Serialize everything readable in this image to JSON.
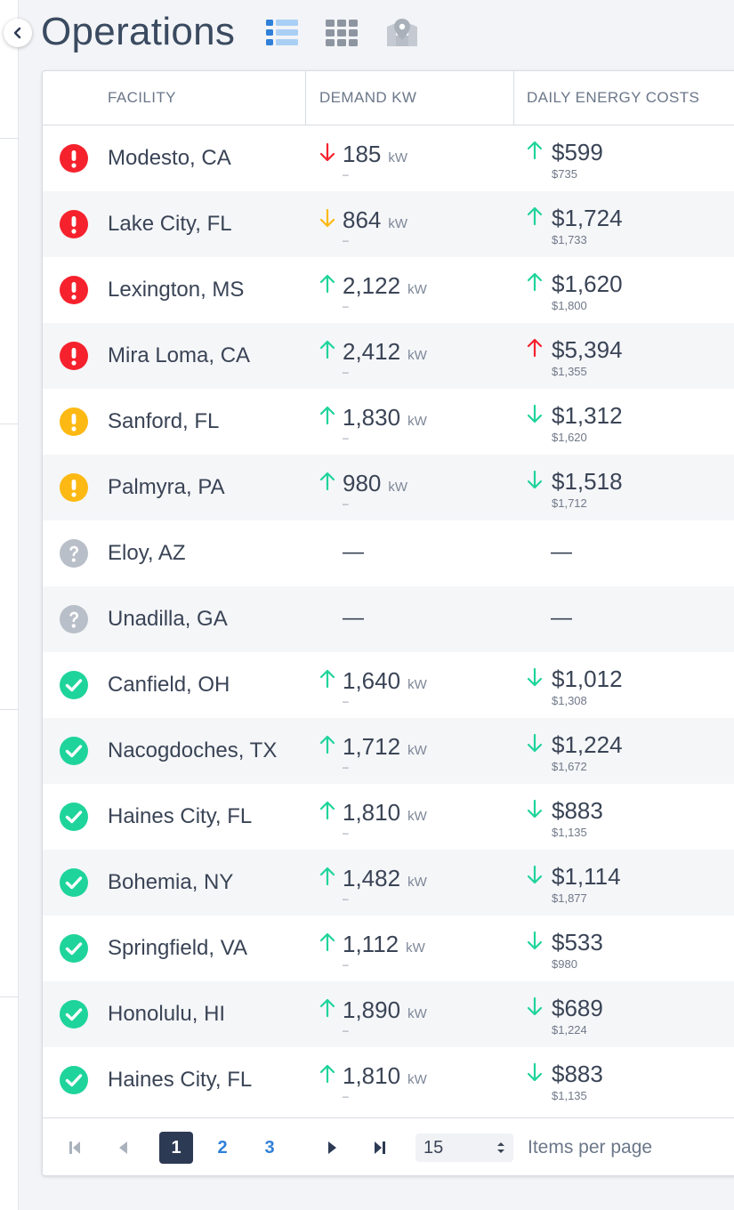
{
  "header": {
    "title": "Operations",
    "views": [
      {
        "name": "list-view",
        "icon": "list-icon",
        "active": true
      },
      {
        "name": "grid-view",
        "icon": "grid-icon",
        "active": false
      },
      {
        "name": "map-view",
        "icon": "map-pin-icon",
        "active": false
      }
    ]
  },
  "columns": {
    "facility": "FACILITY",
    "demand": "DEMAND KW",
    "costs": "DAILY ENERGY COSTS"
  },
  "colors": {
    "red": "#f5222d",
    "amber": "#fdb913",
    "green": "#1fd49a",
    "gray": "#b9bfc8",
    "accent": "#2f80d8"
  },
  "rows": [
    {
      "status": "alert",
      "facility": "Modesto, CA",
      "kw": "185",
      "kw_unit": "kW",
      "kw_sub": "–",
      "kw_trend": "down",
      "kw_color": "red",
      "cost": "$599",
      "cost_sub": "$735",
      "cost_trend": "up",
      "cost_color": "green"
    },
    {
      "status": "alert",
      "facility": "Lake City, FL",
      "kw": "864",
      "kw_unit": "kW",
      "kw_sub": "–",
      "kw_trend": "down",
      "kw_color": "amber",
      "cost": "$1,724",
      "cost_sub": "$1,733",
      "cost_trend": "up",
      "cost_color": "green"
    },
    {
      "status": "alert",
      "facility": "Lexington, MS",
      "kw": "2,122",
      "kw_unit": "kW",
      "kw_sub": "–",
      "kw_trend": "up",
      "kw_color": "green",
      "cost": "$1,620",
      "cost_sub": "$1,800",
      "cost_trend": "up",
      "cost_color": "green"
    },
    {
      "status": "alert",
      "facility": "Mira Loma, CA",
      "kw": "2,412",
      "kw_unit": "kW",
      "kw_sub": "–",
      "kw_trend": "up",
      "kw_color": "green",
      "cost": "$5,394",
      "cost_sub": "$1,355",
      "cost_trend": "up",
      "cost_color": "red"
    },
    {
      "status": "warning",
      "facility": "Sanford, FL",
      "kw": "1,830",
      "kw_unit": "kW",
      "kw_sub": "–",
      "kw_trend": "up",
      "kw_color": "green",
      "cost": "$1,312",
      "cost_sub": "$1,620",
      "cost_trend": "down",
      "cost_color": "green"
    },
    {
      "status": "warning",
      "facility": "Palmyra, PA",
      "kw": "980",
      "kw_unit": "kW",
      "kw_sub": "–",
      "kw_trend": "up",
      "kw_color": "green",
      "cost": "$1,518",
      "cost_sub": "$1,712",
      "cost_trend": "down",
      "cost_color": "green"
    },
    {
      "status": "unknown",
      "facility": "Eloy, AZ",
      "kw": "—",
      "cost": "—"
    },
    {
      "status": "unknown",
      "facility": "Unadilla, GA",
      "kw": "—",
      "cost": "—"
    },
    {
      "status": "ok",
      "facility": "Canfield, OH",
      "kw": "1,640",
      "kw_unit": "kW",
      "kw_sub": "–",
      "kw_trend": "up",
      "kw_color": "green",
      "cost": "$1,012",
      "cost_sub": "$1,308",
      "cost_trend": "down",
      "cost_color": "green"
    },
    {
      "status": "ok",
      "facility": "Nacogdoches, TX",
      "kw": "1,712",
      "kw_unit": "kW",
      "kw_sub": "–",
      "kw_trend": "up",
      "kw_color": "green",
      "cost": "$1,224",
      "cost_sub": "$1,672",
      "cost_trend": "down",
      "cost_color": "green"
    },
    {
      "status": "ok",
      "facility": "Haines City, FL",
      "kw": "1,810",
      "kw_unit": "kW",
      "kw_sub": "–",
      "kw_trend": "up",
      "kw_color": "green",
      "cost": "$883",
      "cost_sub": "$1,135",
      "cost_trend": "down",
      "cost_color": "green"
    },
    {
      "status": "ok",
      "facility": "Bohemia, NY",
      "kw": "1,482",
      "kw_unit": "kW",
      "kw_sub": "–",
      "kw_trend": "up",
      "kw_color": "green",
      "cost": "$1,114",
      "cost_sub": "$1,877",
      "cost_trend": "down",
      "cost_color": "green"
    },
    {
      "status": "ok",
      "facility": "Springfield, VA",
      "kw": "1,112",
      "kw_unit": "kW",
      "kw_sub": "–",
      "kw_trend": "up",
      "kw_color": "green",
      "cost": "$533",
      "cost_sub": "$980",
      "cost_trend": "down",
      "cost_color": "green"
    },
    {
      "status": "ok",
      "facility": "Honolulu, HI",
      "kw": "1,890",
      "kw_unit": "kW",
      "kw_sub": "–",
      "kw_trend": "up",
      "kw_color": "green",
      "cost": "$689",
      "cost_sub": "$1,224",
      "cost_trend": "down",
      "cost_color": "green"
    },
    {
      "status": "ok",
      "facility": "Haines City, FL",
      "kw": "1,810",
      "kw_unit": "kW",
      "kw_sub": "–",
      "kw_trend": "up",
      "kw_color": "green",
      "cost": "$883",
      "cost_sub": "$1,135",
      "cost_trend": "down",
      "cost_color": "green"
    }
  ],
  "pagination": {
    "pages": [
      "1",
      "2",
      "3"
    ],
    "current": "1",
    "page_size": "15",
    "items_per_page_label": "Items per page"
  }
}
